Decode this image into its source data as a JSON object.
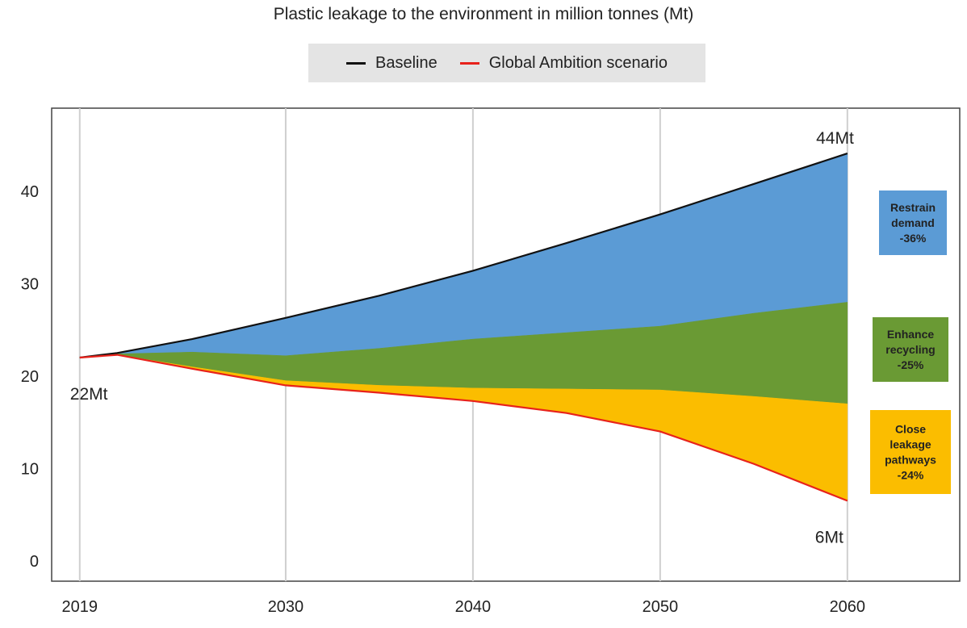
{
  "chart_data": {
    "type": "area",
    "title": "Plastic leakage to the environment in million tonnes (Mt)",
    "xlabel": "",
    "ylabel": "",
    "x_ticks": [
      2019,
      2030,
      2040,
      2050,
      2060
    ],
    "y_ticks": [
      0,
      10,
      20,
      30,
      40
    ],
    "xlim": [
      2017.5,
      2066
    ],
    "ylim": [
      -2.2,
      49
    ],
    "grid": true,
    "legend_placement": "top-center",
    "colors": {
      "baseline": "#111111",
      "global_ambition": "#e8221b",
      "restrain_demand": "#5b9bd5",
      "enhance_recycling": "#6a9a34",
      "close_leakage": "#fbbd00"
    },
    "x": [
      2019,
      2021,
      2025,
      2030,
      2035,
      2040,
      2045,
      2050,
      2055,
      2060
    ],
    "series": [
      {
        "name": "Baseline",
        "values": [
          22,
          22.5,
          24,
          26.3,
          28.7,
          31.4,
          34.4,
          37.5,
          40.8,
          44.1
        ]
      },
      {
        "name": "Global Ambition scenario",
        "values": [
          22,
          22.3,
          20.8,
          19,
          18.2,
          17.3,
          16,
          14,
          10.5,
          6.5
        ]
      }
    ],
    "bands": [
      {
        "name": "Restrain demand",
        "upper": [
          22,
          22.5,
          24,
          26.3,
          28.7,
          31.4,
          34.4,
          37.5,
          40.8,
          44.1
        ],
        "lower": [
          22,
          22.4,
          22.6,
          22.2,
          23.0,
          24.0,
          24.7,
          25.4,
          26.8,
          28.0
        ]
      },
      {
        "name": "Enhance recycling",
        "upper": [
          22,
          22.4,
          22.6,
          22.2,
          23.0,
          24.0,
          24.7,
          25.4,
          26.8,
          28.0
        ],
        "lower": [
          22,
          22.3,
          21.0,
          19.5,
          19.0,
          18.7,
          18.6,
          18.5,
          17.8,
          17.0
        ]
      },
      {
        "name": "Close leakage pathways",
        "upper": [
          22,
          22.3,
          21.0,
          19.5,
          19.0,
          18.7,
          18.6,
          18.5,
          17.8,
          17.0
        ],
        "lower": [
          22,
          22.3,
          20.8,
          19,
          18.2,
          17.3,
          16,
          14,
          10.5,
          6.5
        ]
      }
    ],
    "annotations": [
      {
        "text": "44Mt",
        "x": 2060,
        "y": 44.1
      },
      {
        "text": "22Mt",
        "x": 2019,
        "y": 22
      },
      {
        "text": "6Mt",
        "x": 2060,
        "y": 6.5
      }
    ],
    "badges": [
      {
        "lines": [
          "Restrain",
          "demand",
          "-36%"
        ],
        "color": "#5b9bd5"
      },
      {
        "lines": [
          "Enhance",
          "recycling",
          "-25%"
        ],
        "color": "#6a9a34"
      },
      {
        "lines": [
          "Close",
          "leakage",
          "pathways",
          "-24%"
        ],
        "color": "#fbbd00"
      }
    ]
  }
}
